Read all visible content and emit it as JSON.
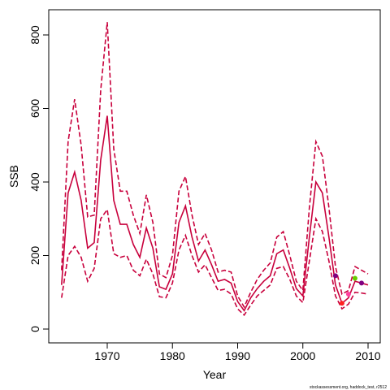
{
  "chart_data": {
    "type": "line",
    "xlabel": "Year",
    "ylabel": "SSB",
    "caption": "stockassessment.org, haddock_test, r2512",
    "x": [
      1963,
      1964,
      1965,
      1966,
      1967,
      1968,
      1969,
      1970,
      1971,
      1972,
      1973,
      1974,
      1975,
      1976,
      1977,
      1978,
      1979,
      1980,
      1981,
      1982,
      1983,
      1984,
      1985,
      1986,
      1987,
      1988,
      1989,
      1990,
      1991,
      1992,
      1993,
      1994,
      1995,
      1996,
      1997,
      1998,
      1999,
      2000,
      2001,
      2002,
      2003,
      2004,
      2005,
      2006,
      2007,
      2008,
      2009,
      2010
    ],
    "series": [
      {
        "color": "#c8003c",
        "dashed": false,
        "values": [
          120,
          370,
          427,
          350,
          220,
          235,
          460,
          580,
          350,
          285,
          285,
          230,
          195,
          275,
          220,
          115,
          108,
          150,
          290,
          335,
          250,
          185,
          215,
          175,
          130,
          135,
          125,
          75,
          50,
          85,
          110,
          130,
          145,
          205,
          215,
          165,
          110,
          90,
          250,
          400,
          370,
          250,
          120,
          70,
          85,
          130,
          125,
          120
        ]
      },
      {
        "color": "#c8003c",
        "dashed": true,
        "values": [
          160,
          510,
          625,
          500,
          305,
          310,
          650,
          835,
          490,
          375,
          375,
          310,
          260,
          365,
          290,
          150,
          140,
          200,
          375,
          415,
          310,
          230,
          260,
          215,
          155,
          160,
          155,
          90,
          60,
          100,
          135,
          160,
          180,
          250,
          265,
          200,
          130,
          105,
          330,
          510,
          470,
          330,
          170,
          95,
          105,
          170,
          160,
          150
        ]
      },
      {
        "color": "#c8003c",
        "dashed": true,
        "values": [
          85,
          200,
          225,
          195,
          130,
          165,
          300,
          325,
          205,
          195,
          200,
          160,
          145,
          190,
          150,
          88,
          85,
          125,
          215,
          255,
          200,
          155,
          175,
          140,
          105,
          108,
          95,
          55,
          38,
          65,
          90,
          105,
          120,
          165,
          170,
          135,
          90,
          72,
          185,
          300,
          265,
          185,
          90,
          55,
          68,
          100,
          98,
          95
        ]
      }
    ],
    "markers": [
      {
        "x": 2005,
        "y": 145,
        "color": "#800080"
      },
      {
        "x": 2006,
        "y": 70,
        "color": "#ff2020"
      },
      {
        "x": 2007,
        "y": 95,
        "color": "#ff40a0"
      },
      {
        "x": 2008,
        "y": 138,
        "color": "#66cc00"
      },
      {
        "x": 2009,
        "y": 125,
        "color": "#800080"
      }
    ],
    "xlim": [
      1961.03,
      2011.87
    ],
    "ylim": [
      -37.6,
      868.5
    ],
    "xticks": [
      1970,
      1980,
      1990,
      2000,
      2010
    ],
    "yticks": [
      0,
      200,
      400,
      600,
      800
    ]
  }
}
